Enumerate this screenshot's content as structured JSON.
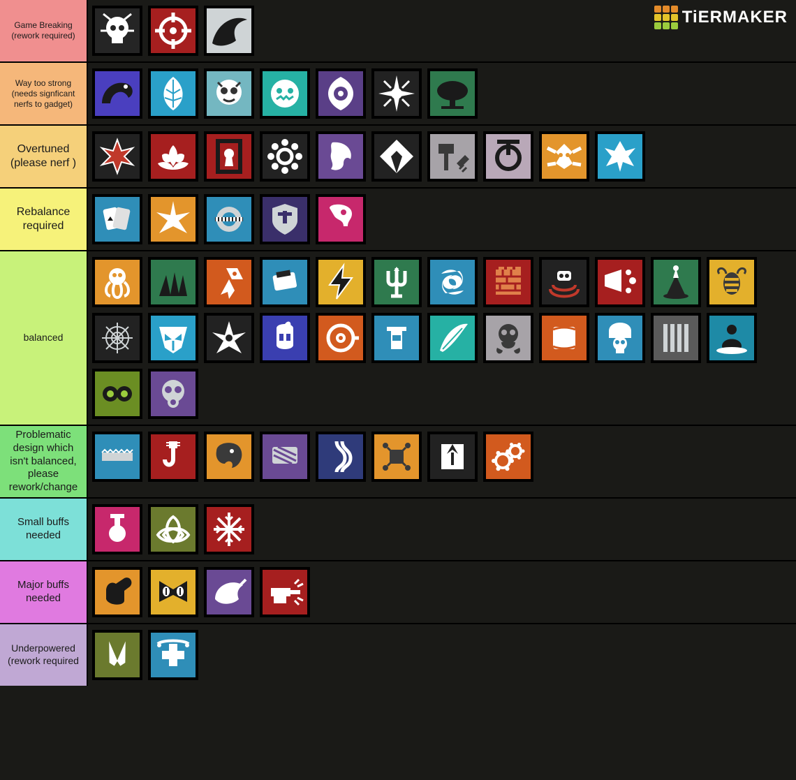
{
  "watermark": {
    "text": "TiERMAKER",
    "grid_colors": [
      "#e48b2a",
      "#e48b2a",
      "#e48b2a",
      "#e4c32a",
      "#e4c32a",
      "#e4c32a",
      "#9bcc3d",
      "#9bcc3d",
      "#9bcc3d"
    ]
  },
  "page_bg": "#1a1a17",
  "tiers": [
    {
      "label": "Game Breaking (rework required)",
      "label_bg": "#f08f8f",
      "label_fontsize": 12,
      "ops": [
        {
          "name": "op-skull-scream",
          "bg": "#252525",
          "accent": "#ffffff",
          "glyph": "skull"
        },
        {
          "name": "op-crosshair",
          "bg": "#a61f1f",
          "accent": "#ffffff",
          "glyph": "target"
        },
        {
          "name": "op-rhino-shadow",
          "bg": "#cfd4d6",
          "accent": "#1a1a1a",
          "glyph": "beast"
        }
      ]
    },
    {
      "label": "Way too strong (needs signficant nerfs to gadget)",
      "label_bg": "#f5b77a",
      "label_fontsize": 12,
      "ops": [
        {
          "name": "op-dragon-smoke",
          "bg": "#4a3fbf",
          "accent": "#1a1a1a",
          "glyph": "dragon"
        },
        {
          "name": "op-feather-burst",
          "bg": "#2aa0c9",
          "accent": "#ffffff",
          "glyph": "feather"
        },
        {
          "name": "op-vampire-glasses",
          "bg": "#74b7c1",
          "accent": "#ffffff",
          "glyph": "face"
        },
        {
          "name": "op-grin-robot",
          "bg": "#26b1a4",
          "accent": "#ffffff",
          "glyph": "robot"
        },
        {
          "name": "op-eye-swirl",
          "bg": "#5a3f87",
          "accent": "#ffffff",
          "glyph": "eye"
        },
        {
          "name": "op-compass-star",
          "bg": "#222",
          "accent": "#ffffff",
          "glyph": "compass"
        },
        {
          "name": "op-tree-cloud",
          "bg": "#2f7a4e",
          "accent": "#1a1a1a",
          "glyph": "tree"
        }
      ]
    },
    {
      "label": "Overtuned (please nerf )",
      "label_bg": "#f5d07a",
      "label_fontsize": 16,
      "ops": [
        {
          "name": "op-red-spike",
          "bg": "#222",
          "accent": "#c0392b",
          "glyph": "spike"
        },
        {
          "name": "op-lotus",
          "bg": "#a61f1f",
          "accent": "#ffffff",
          "glyph": "lotus"
        },
        {
          "name": "op-keyhole",
          "bg": "#a61f1f",
          "accent": "#1a1a1a",
          "glyph": "keyhole"
        },
        {
          "name": "op-gear-balls",
          "bg": "#222",
          "accent": "#ffffff",
          "glyph": "gear"
        },
        {
          "name": "op-profile-face",
          "bg": "#6a4a94",
          "accent": "#ffffff",
          "glyph": "profile"
        },
        {
          "name": "op-diamond-bolt",
          "bg": "#222",
          "accent": "#ffffff",
          "glyph": "diamond"
        },
        {
          "name": "op-hammer-spark",
          "bg": "#a7a3a8",
          "accent": "#3a3a3a",
          "glyph": "hammer"
        },
        {
          "name": "op-power-button",
          "bg": "#b9a8b8",
          "accent": "#1a1a1a",
          "glyph": "power"
        },
        {
          "name": "op-winged-owl",
          "bg": "#e3952c",
          "accent": "#ffffff",
          "glyph": "owl"
        },
        {
          "name": "op-phoenix",
          "bg": "#2aa0c9",
          "accent": "#ffffff",
          "glyph": "phoenix"
        }
      ]
    },
    {
      "label": "Rebalance required",
      "label_bg": "#f6f27a",
      "label_fontsize": 16,
      "ops": [
        {
          "name": "op-ace-cards",
          "bg": "#2f8eb8",
          "accent": "#1a1a1a",
          "glyph": "cards"
        },
        {
          "name": "op-burst-star",
          "bg": "#e3952c",
          "accent": "#ffffff",
          "glyph": "burst"
        },
        {
          "name": "op-checker-ring",
          "bg": "#2f8eb8",
          "accent": "#cfd4d6",
          "glyph": "ring"
        },
        {
          "name": "op-shield-t",
          "bg": "#3a2f6a",
          "accent": "#cfd4d6",
          "glyph": "shield"
        },
        {
          "name": "op-skull-magenta",
          "bg": "#c7286c",
          "accent": "#ffffff",
          "glyph": "skullhalf"
        }
      ]
    },
    {
      "label": "balanced",
      "label_bg": "#c8f27a",
      "label_fontsize": 14,
      "ops": [
        {
          "name": "op-kraken",
          "bg": "#e3952c",
          "accent": "#ffffff",
          "glyph": "kraken"
        },
        {
          "name": "op-claw-grass",
          "bg": "#2f7a4e",
          "accent": "#1a1a1a",
          "glyph": "claw"
        },
        {
          "name": "op-rocket",
          "bg": "#d25a1e",
          "accent": "#ffffff",
          "glyph": "rocket"
        },
        {
          "name": "op-breach-clip",
          "bg": "#2f8eb8",
          "accent": "#ffffff",
          "glyph": "clip"
        },
        {
          "name": "op-lightning",
          "bg": "#e3b02c",
          "accent": "#1a1a1a",
          "glyph": "bolt"
        },
        {
          "name": "op-trident",
          "bg": "#2f7a4e",
          "accent": "#ffffff",
          "glyph": "trident"
        },
        {
          "name": "op-warp-swirl",
          "bg": "#2f8eb8",
          "accent": "#ffffff",
          "glyph": "swirl"
        },
        {
          "name": "op-castle-wall",
          "bg": "#a61f1f",
          "accent": "#e0804a",
          "glyph": "wall"
        },
        {
          "name": "op-drone-scan",
          "bg": "#222",
          "accent": "#ffffff",
          "glyph": "drone"
        },
        {
          "name": "op-red-spray",
          "bg": "#a61f1f",
          "accent": "#ffffff",
          "glyph": "spray"
        },
        {
          "name": "op-volcano",
          "bg": "#2f7a4e",
          "accent": "#ffffff",
          "glyph": "volcano"
        },
        {
          "name": "op-bee",
          "bg": "#e3b02c",
          "accent": "#3a3a3a",
          "glyph": "bee"
        },
        {
          "name": "op-web",
          "bg": "#222",
          "accent": "#cfd4d6",
          "glyph": "web"
        },
        {
          "name": "op-mask-v",
          "bg": "#2aa0c9",
          "accent": "#ffffff",
          "glyph": "vmask"
        },
        {
          "name": "op-shuriken",
          "bg": "#222",
          "accent": "#ffffff",
          "glyph": "shuriken"
        },
        {
          "name": "op-spartan",
          "bg": "#3a3fb0",
          "accent": "#ffffff",
          "glyph": "helmet"
        },
        {
          "name": "op-scope-eye",
          "bg": "#d25a1e",
          "accent": "#ffffff",
          "glyph": "scope"
        },
        {
          "name": "op-vest",
          "bg": "#2f8eb8",
          "accent": "#ffffff",
          "glyph": "vest"
        },
        {
          "name": "op-feather-quill",
          "bg": "#26b1a4",
          "accent": "#ffffff",
          "glyph": "quill"
        },
        {
          "name": "op-gas-skull",
          "bg": "#a7a3a8",
          "accent": "#3a3a3a",
          "glyph": "gasskull"
        },
        {
          "name": "op-patch",
          "bg": "#d25a1e",
          "accent": "#ffffff",
          "glyph": "patch"
        },
        {
          "name": "op-domed-skull",
          "bg": "#2f8eb8",
          "accent": "#ffffff",
          "glyph": "domeskull"
        },
        {
          "name": "op-bars",
          "bg": "#5a5a5a",
          "accent": "#cfd4d6",
          "glyph": "bars"
        },
        {
          "name": "op-meditate",
          "bg": "#1e8aa6",
          "accent": "#1a1a1a",
          "glyph": "meditate"
        },
        {
          "name": "op-goggles",
          "bg": "#6b8e23",
          "accent": "#1a1a1a",
          "glyph": "goggles"
        },
        {
          "name": "op-gasmask",
          "bg": "#6a4a94",
          "accent": "#cfd4d6",
          "glyph": "gasmask"
        }
      ]
    },
    {
      "label": "Problematic design which isn't balanced, please rework/change",
      "label_bg": "#7de07a",
      "label_fontsize": 15,
      "ops": [
        {
          "name": "op-saw-bar",
          "bg": "#2f8eb8",
          "accent": "#cfd4d6",
          "glyph": "sawbar"
        },
        {
          "name": "op-hook",
          "bg": "#a61f1f",
          "accent": "#ffffff",
          "glyph": "hook"
        },
        {
          "name": "op-lion",
          "bg": "#e3952c",
          "accent": "#3a3a3a",
          "glyph": "lion"
        },
        {
          "name": "op-riot-shield",
          "bg": "#6a4a94",
          "accent": "#cfd4d6",
          "glyph": "riot"
        },
        {
          "name": "op-rope",
          "bg": "#2f3b7a",
          "accent": "#ffffff",
          "glyph": "rope"
        },
        {
          "name": "op-circuit",
          "bg": "#e3952c",
          "accent": "#3a3a3a",
          "glyph": "circuit"
        },
        {
          "name": "op-suit-tie",
          "bg": "#222",
          "accent": "#ffffff",
          "glyph": "suit"
        },
        {
          "name": "op-gears",
          "bg": "#d25a1e",
          "accent": "#ffffff",
          "glyph": "gears"
        }
      ]
    },
    {
      "label": "Small buffs needed",
      "label_bg": "#7de0d8",
      "label_fontsize": 15,
      "ops": [
        {
          "name": "op-piston",
          "bg": "#c7286c",
          "accent": "#ffffff",
          "glyph": "piston"
        },
        {
          "name": "op-triquetra",
          "bg": "#6b7a2e",
          "accent": "#ffffff",
          "glyph": "triquetra"
        },
        {
          "name": "op-snowflake",
          "bg": "#a61f1f",
          "accent": "#ffffff",
          "glyph": "snow"
        }
      ]
    },
    {
      "label": "Major buffs needed",
      "label_bg": "#e07ae0",
      "label_fontsize": 15,
      "ops": [
        {
          "name": "op-fist",
          "bg": "#e3952c",
          "accent": "#1a1a1a",
          "glyph": "fist"
        },
        {
          "name": "op-cat-eyes",
          "bg": "#e3b02c",
          "accent": "#1a1a1a",
          "glyph": "cateyes"
        },
        {
          "name": "op-rhino-small",
          "bg": "#6a4a94",
          "accent": "#ffffff",
          "glyph": "rhino"
        },
        {
          "name": "op-turret",
          "bg": "#a61f1f",
          "accent": "#ffffff",
          "glyph": "turret"
        }
      ]
    },
    {
      "label": "Underpowered (rework required",
      "label_bg": "#c0a8d4",
      "label_fontsize": 14,
      "ops": [
        {
          "name": "op-knives",
          "bg": "#6b7a2e",
          "accent": "#ffffff",
          "glyph": "knives"
        },
        {
          "name": "op-medic-cross",
          "bg": "#2f8eb8",
          "accent": "#ffffff",
          "glyph": "medic"
        }
      ]
    }
  ]
}
